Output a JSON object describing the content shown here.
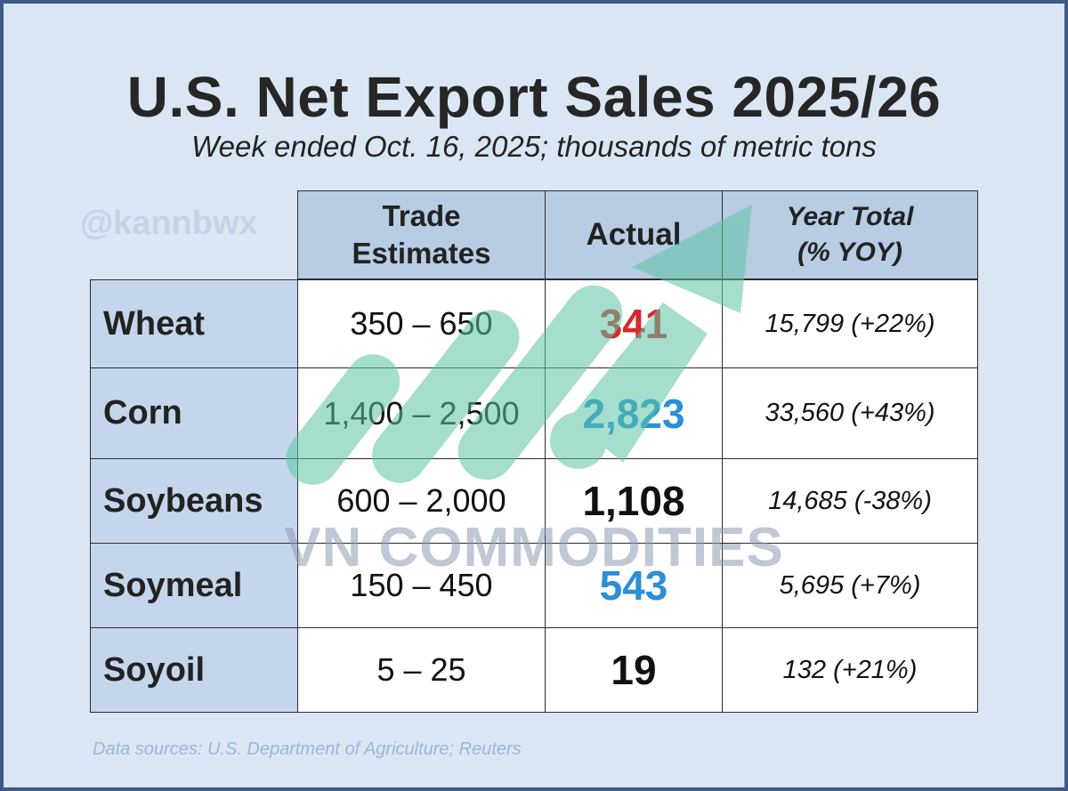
{
  "header": {
    "title": "U.S. Net Export Sales 2025/26",
    "subtitle": "Week ended Oct. 16, 2025; thousands of metric tons"
  },
  "watermarks": {
    "handle": "@kannbwx",
    "brand": "VN COMMODITIES"
  },
  "footer": {
    "source": "Data sources: U.S. Department of Agriculture; Reuters"
  },
  "colors": {
    "below_estimate": "#d42a2a",
    "above_estimate": "#2b8fd6",
    "within_estimate": "#111111",
    "header_fill": "#b8cce4",
    "arrow": "#5cc4a4"
  },
  "chart_data": {
    "type": "table",
    "columns": [
      "",
      "Trade Estimates",
      "Actual",
      "Year Total (% YOY)"
    ],
    "column_lines": {
      "trade_estimates": [
        "Trade",
        "Estimates"
      ],
      "actual": [
        "Actual"
      ],
      "year_total": [
        "Year Total",
        "(% YOY)"
      ]
    },
    "rows": [
      {
        "commodity": "Wheat",
        "estimates": "350 – 650",
        "actual": "341",
        "status": "below",
        "year_total": "15,799 (+22%)"
      },
      {
        "commodity": "Corn",
        "estimates": "1,400 – 2,500",
        "actual": "2,823",
        "status": "above",
        "year_total": "33,560 (+43%)"
      },
      {
        "commodity": "Soybeans",
        "estimates": "600 – 2,000",
        "actual": "1,108",
        "status": "within",
        "year_total": "14,685 (-38%)"
      },
      {
        "commodity": "Soymeal",
        "estimates": "150 – 450",
        "actual": "543",
        "status": "above",
        "year_total": "5,695 (+7%)"
      },
      {
        "commodity": "Soyoil",
        "estimates": "5 – 25",
        "actual": "19",
        "status": "within",
        "year_total": "132 (+21%)"
      }
    ]
  }
}
